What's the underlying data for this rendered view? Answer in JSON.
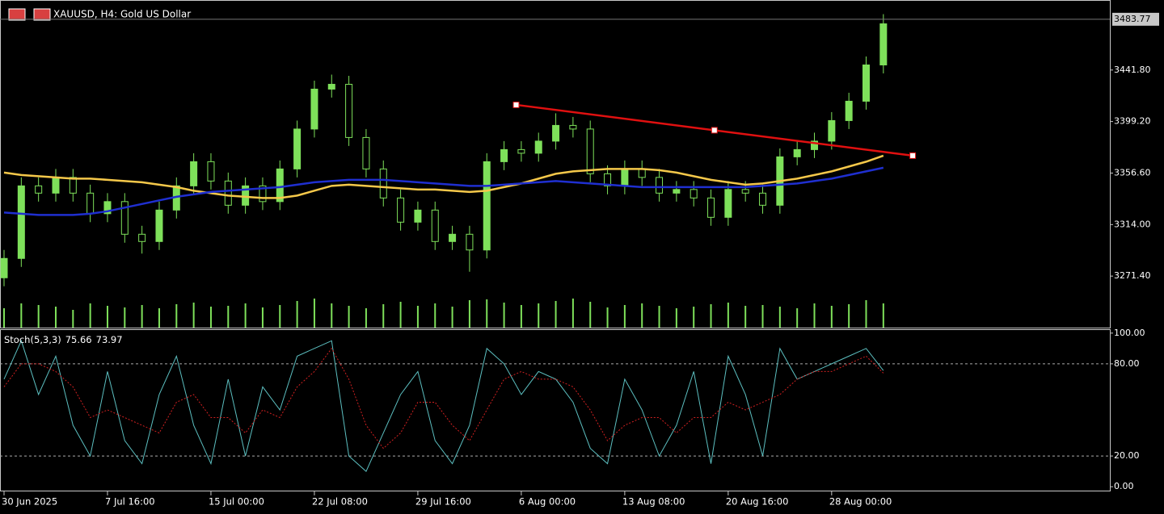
{
  "chart_data": [
    {
      "type": "candlestick",
      "title": "XAUUSD, H4:  Gold US Dollar",
      "categories": [
        "30 Jun 2025",
        null,
        null,
        null,
        null,
        null,
        "7 Jul 16:00",
        null,
        null,
        null,
        null,
        null,
        "15 Jul 00:00",
        null,
        null,
        null,
        null,
        null,
        "22 Jul 08:00",
        null,
        null,
        null,
        null,
        null,
        "29 Jul 16:00",
        null,
        null,
        null,
        null,
        null,
        "6 Aug 00:00",
        null,
        null,
        null,
        null,
        null,
        "13 Aug 08:00",
        null,
        null,
        null,
        null,
        null,
        "20 Aug 16:00",
        null,
        null,
        null,
        null,
        null,
        "28 Aug 00:00",
        null,
        null,
        null
      ],
      "open": [
        3270,
        3286,
        3346,
        3340,
        3353,
        3340,
        3323,
        3333,
        3306,
        3300,
        3326,
        3346,
        3366,
        3350,
        3330,
        3346,
        3333,
        3360,
        3393,
        3426,
        3430,
        3386,
        3360,
        3336,
        3316,
        3326,
        3300,
        3306,
        3293,
        3366,
        3376,
        3373,
        3383,
        3396,
        3393,
        3356,
        3346,
        3360,
        3353,
        3340,
        3343,
        3336,
        3320,
        3343,
        3340,
        3330,
        3370,
        3376,
        3383,
        3400,
        3416,
        3446
      ],
      "high": [
        3293,
        3353,
        3353,
        3360,
        3360,
        3347,
        3340,
        3340,
        3313,
        3333,
        3353,
        3373,
        3373,
        3357,
        3353,
        3353,
        3367,
        3400,
        3433,
        3438,
        3437,
        3393,
        3367,
        3343,
        3333,
        3333,
        3313,
        3313,
        3373,
        3383,
        3383,
        3390,
        3406,
        3403,
        3400,
        3363,
        3367,
        3367,
        3360,
        3350,
        3350,
        3343,
        3350,
        3350,
        3347,
        3377,
        3383,
        3390,
        3407,
        3423,
        3453,
        3488
      ],
      "low": [
        3263,
        3279,
        3333,
        3333,
        3333,
        3316,
        3316,
        3299,
        3290,
        3293,
        3319,
        3339,
        3343,
        3323,
        3323,
        3326,
        3326,
        3353,
        3386,
        3419,
        3379,
        3353,
        3329,
        3309,
        3309,
        3293,
        3293,
        3275,
        3286,
        3359,
        3366,
        3366,
        3376,
        3386,
        3349,
        3339,
        3339,
        3346,
        3333,
        3333,
        3329,
        3313,
        3313,
        3333,
        3323,
        3323,
        3363,
        3369,
        3376,
        3393,
        3409,
        3439
      ],
      "close": [
        3286,
        3346,
        3340,
        3353,
        3340,
        3323,
        3333,
        3306,
        3300,
        3326,
        3346,
        3366,
        3350,
        3330,
        3346,
        3333,
        3360,
        3393,
        3426,
        3430,
        3386,
        3360,
        3336,
        3316,
        3326,
        3300,
        3306,
        3293,
        3366,
        3376,
        3373,
        3383,
        3396,
        3393,
        3356,
        3346,
        3360,
        3353,
        3340,
        3343,
        3336,
        3320,
        3343,
        3340,
        3330,
        3370,
        3376,
        3383,
        3400,
        3416,
        3446,
        3480
      ],
      "color": "#7ee05a",
      "volume": [
        24,
        30,
        28,
        26,
        22,
        30,
        27,
        25,
        28,
        24,
        29,
        31,
        26,
        27,
        30,
        25,
        28,
        33,
        36,
        30,
        27,
        24,
        29,
        32,
        27,
        30,
        26,
        34,
        35,
        31,
        28,
        30,
        33,
        36,
        32,
        25,
        28,
        30,
        27,
        24,
        26,
        29,
        31,
        27,
        28,
        26,
        24,
        30,
        27,
        29,
        34,
        30
      ],
      "moving_averages": [
        {
          "color": "#f5c84a",
          "values": [
            3357,
            3355,
            3354,
            3353,
            3352,
            3352,
            3351,
            3350,
            3349,
            3347,
            3345,
            3342,
            3340,
            3338,
            3337,
            3336,
            3336,
            3338,
            3342,
            3346,
            3347,
            3346,
            3345,
            3344,
            3343,
            3343,
            3342,
            3341,
            3342,
            3345,
            3348,
            3352,
            3356,
            3358,
            3359,
            3360,
            3360,
            3360,
            3359,
            3357,
            3354,
            3351,
            3349,
            3347,
            3348,
            3350,
            3352,
            3355,
            3358,
            3362,
            3366,
            3371
          ]
        },
        {
          "color": "#1f2fd0",
          "values": [
            3324,
            3323,
            3322,
            3322,
            3322,
            3323,
            3325,
            3328,
            3331,
            3334,
            3337,
            3339,
            3341,
            3342,
            3343,
            3344,
            3345,
            3347,
            3349,
            3350,
            3351,
            3351,
            3351,
            3350,
            3349,
            3348,
            3347,
            3346,
            3346,
            3347,
            3348,
            3349,
            3350,
            3349,
            3348,
            3347,
            3346,
            3345,
            3345,
            3345,
            3345,
            3345,
            3345,
            3345,
            3346,
            3347,
            3348,
            3350,
            3352,
            3355,
            3358,
            3361
          ]
        }
      ],
      "trendline": {
        "color": "#e01010",
        "x": [
          29.7,
          52.7
        ],
        "values": [
          3413,
          3371
        ]
      },
      "last_price": {
        "value": 3483.77,
        "label": "3483.77"
      },
      "ylim": [
        3228.8,
        3499.7
      ],
      "yticks": [
        {
          "value": 3271.4,
          "label": "3271.40"
        },
        {
          "value": 3314,
          "label": "3314.00"
        },
        {
          "value": 3356.6,
          "label": "3356.60"
        },
        {
          "value": 3399.2,
          "label": "3399.20"
        },
        {
          "value": 3441.8,
          "label": "3441.80"
        }
      ]
    },
    {
      "type": "line",
      "title": "Stoch(5,3,3)",
      "series": [
        {
          "color": "#5cbfc0",
          "values": [
            70,
            95,
            60,
            85,
            40,
            20,
            75,
            30,
            15,
            60,
            85,
            40,
            15,
            70,
            20,
            65,
            50,
            85,
            90,
            95,
            20,
            10,
            35,
            60,
            75,
            30,
            15,
            40,
            90,
            80,
            60,
            75,
            70,
            55,
            25,
            15,
            70,
            50,
            20,
            40,
            75,
            15,
            85,
            60,
            20,
            90,
            70,
            75,
            80,
            85,
            90,
            75.66
          ]
        },
        {
          "color": "#d02020",
          "values": [
            65,
            80,
            80,
            75,
            65,
            45,
            50,
            45,
            40,
            35,
            55,
            60,
            45,
            45,
            35,
            50,
            45,
            65,
            75,
            90,
            70,
            40,
            25,
            35,
            55,
            55,
            40,
            30,
            50,
            70,
            75,
            70,
            70,
            65,
            50,
            30,
            40,
            45,
            45,
            35,
            45,
            45,
            55,
            50,
            55,
            60,
            70,
            75,
            75,
            80,
            85,
            73.97
          ]
        }
      ],
      "ylim": [
        -2,
        102
      ],
      "yticks": [
        {
          "value": 0,
          "label": "0.00"
        },
        {
          "value": 20,
          "label": "20.00"
        },
        {
          "value": 80,
          "label": "80.00"
        },
        {
          "value": 100,
          "label": "100.00"
        }
      ],
      "levels": [
        20,
        80
      ]
    }
  ]
}
